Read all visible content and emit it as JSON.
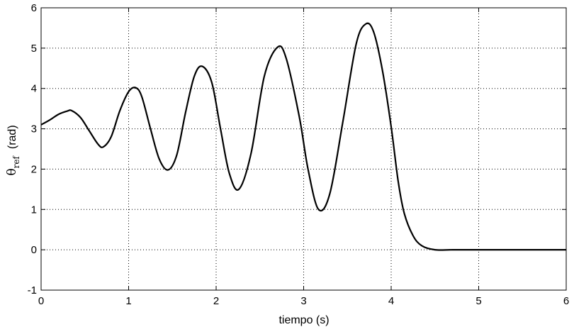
{
  "chart_data": {
    "type": "line",
    "xlabel": "tiempo   (s)",
    "ylabel": {
      "symbol": "θ",
      "subscript": "ref",
      "unit": "(rad)"
    },
    "xlim": [
      0,
      6
    ],
    "ylim": [
      -1,
      6
    ],
    "xticks": [
      0,
      1,
      2,
      3,
      4,
      5,
      6
    ],
    "yticks": [
      -1,
      0,
      1,
      2,
      3,
      4,
      5,
      6
    ],
    "grid": true,
    "grid_style": "dotted",
    "line_color": "#000000",
    "series": [
      {
        "x": [
          0,
          0.1,
          0.2,
          0.3,
          0.35,
          0.45,
          0.55,
          0.65,
          0.71,
          0.8,
          0.9,
          1.0,
          1.08,
          1.15,
          1.25,
          1.35,
          1.45,
          1.55,
          1.65,
          1.75,
          1.84,
          1.95,
          2.05,
          2.15,
          2.26,
          2.4,
          2.55,
          2.7,
          2.8,
          2.95,
          3.05,
          3.17,
          3.3,
          3.45,
          3.6,
          3.71,
          3.8,
          3.9,
          4.0,
          4.08,
          4.15,
          4.25,
          4.35,
          4.5,
          4.7,
          5.0,
          5.5,
          6.0
        ],
        "y": [
          3.1,
          3.22,
          3.36,
          3.44,
          3.45,
          3.28,
          2.95,
          2.62,
          2.55,
          2.8,
          3.45,
          3.92,
          4.02,
          3.8,
          3.0,
          2.25,
          1.98,
          2.35,
          3.4,
          4.3,
          4.55,
          4.15,
          3.0,
          1.9,
          1.5,
          2.4,
          4.3,
          5.02,
          4.75,
          3.3,
          2.0,
          1.0,
          1.4,
          3.2,
          5.1,
          5.6,
          5.4,
          4.45,
          3.05,
          1.7,
          0.9,
          0.35,
          0.1,
          0.0,
          0.0,
          0.0,
          0.0,
          0.0
        ]
      }
    ]
  }
}
